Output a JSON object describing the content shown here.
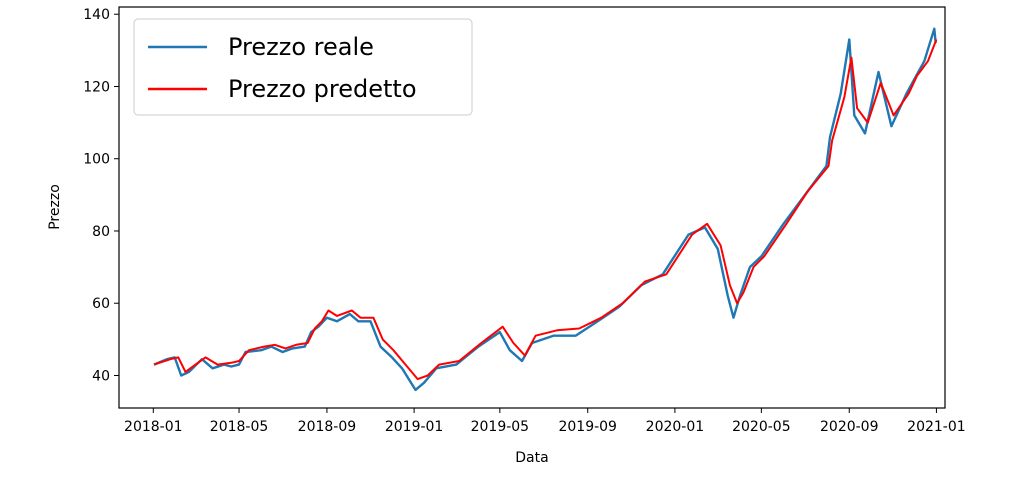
{
  "chart_data": {
    "type": "line",
    "title": "",
    "xlabel": "Data",
    "ylabel": "Prezzo",
    "x_ticks": [
      "2018-01",
      "2018-05",
      "2018-09",
      "2019-01",
      "2019-05",
      "2019-09",
      "2020-01",
      "2020-05",
      "2020-09",
      "2021-01"
    ],
    "y_ticks": [
      40,
      60,
      80,
      100,
      120,
      140
    ],
    "ylim": [
      31,
      142
    ],
    "xlim": [
      "2017-11-14",
      "2021-01-13"
    ],
    "grid": false,
    "legend_position": "top-left",
    "series": [
      {
        "name": "Prezzo reale",
        "color": "#1f77b4",
        "points": [
          [
            "2018-01-02",
            43
          ],
          [
            "2018-01-20",
            44.5
          ],
          [
            "2018-01-31",
            45
          ],
          [
            "2018-02-09",
            40
          ],
          [
            "2018-02-20",
            41
          ],
          [
            "2018-03-10",
            44.5
          ],
          [
            "2018-03-25",
            42
          ],
          [
            "2018-04-10",
            43
          ],
          [
            "2018-04-20",
            42.5
          ],
          [
            "2018-05-01",
            43
          ],
          [
            "2018-05-10",
            46.5
          ],
          [
            "2018-06-01",
            47
          ],
          [
            "2018-06-15",
            48
          ],
          [
            "2018-07-01",
            46.5
          ],
          [
            "2018-07-15",
            47.5
          ],
          [
            "2018-08-01",
            48
          ],
          [
            "2018-08-10",
            52
          ],
          [
            "2018-08-20",
            53.5
          ],
          [
            "2018-09-01",
            56
          ],
          [
            "2018-09-15",
            55
          ],
          [
            "2018-10-03",
            57
          ],
          [
            "2018-10-15",
            55
          ],
          [
            "2018-11-01",
            55
          ],
          [
            "2018-11-15",
            48
          ],
          [
            "2018-12-01",
            45
          ],
          [
            "2018-12-15",
            42
          ],
          [
            "2019-01-03",
            36
          ],
          [
            "2019-01-15",
            38
          ],
          [
            "2019-02-01",
            42
          ],
          [
            "2019-03-01",
            43
          ],
          [
            "2019-04-01",
            48
          ],
          [
            "2019-05-01",
            52
          ],
          [
            "2019-05-15",
            47
          ],
          [
            "2019-06-01",
            44
          ],
          [
            "2019-06-15",
            49
          ],
          [
            "2019-07-15",
            51
          ],
          [
            "2019-08-15",
            51
          ],
          [
            "2019-09-15",
            55
          ],
          [
            "2019-10-15",
            59
          ],
          [
            "2019-11-15",
            65
          ],
          [
            "2019-12-15",
            68
          ],
          [
            "2020-01-20",
            79
          ],
          [
            "2020-02-12",
            81
          ],
          [
            "2020-03-01",
            75
          ],
          [
            "2020-03-15",
            62
          ],
          [
            "2020-03-23",
            56
          ],
          [
            "2020-04-01",
            62
          ],
          [
            "2020-04-15",
            70
          ],
          [
            "2020-05-01",
            73
          ],
          [
            "2020-06-01",
            82
          ],
          [
            "2020-07-01",
            90
          ],
          [
            "2020-07-31",
            98
          ],
          [
            "2020-08-05",
            106
          ],
          [
            "2020-08-20",
            118
          ],
          [
            "2020-09-01",
            133
          ],
          [
            "2020-09-08",
            112
          ],
          [
            "2020-09-23",
            107
          ],
          [
            "2020-10-12",
            124
          ],
          [
            "2020-10-30",
            109
          ],
          [
            "2020-11-20",
            118
          ],
          [
            "2020-12-01",
            122
          ],
          [
            "2020-12-15",
            127
          ],
          [
            "2020-12-29",
            136
          ],
          [
            "2020-12-31",
            132
          ]
        ]
      },
      {
        "name": "Prezzo predetto",
        "color": "#ff0000",
        "points": [
          [
            "2018-01-02",
            43
          ],
          [
            "2018-01-25",
            44.5
          ],
          [
            "2018-02-05",
            45
          ],
          [
            "2018-02-15",
            41
          ],
          [
            "2018-03-01",
            43
          ],
          [
            "2018-03-15",
            45
          ],
          [
            "2018-04-01",
            43
          ],
          [
            "2018-04-20",
            43.5
          ],
          [
            "2018-05-01",
            44
          ],
          [
            "2018-05-15",
            47
          ],
          [
            "2018-06-05",
            48
          ],
          [
            "2018-06-20",
            48.5
          ],
          [
            "2018-07-05",
            47.5
          ],
          [
            "2018-07-20",
            48.5
          ],
          [
            "2018-08-05",
            49
          ],
          [
            "2018-08-15",
            53
          ],
          [
            "2018-08-25",
            55
          ],
          [
            "2018-09-03",
            58
          ],
          [
            "2018-09-15",
            56.5
          ],
          [
            "2018-10-06",
            58
          ],
          [
            "2018-10-18",
            56
          ],
          [
            "2018-11-05",
            56
          ],
          [
            "2018-11-18",
            50
          ],
          [
            "2018-12-03",
            47
          ],
          [
            "2018-12-20",
            43
          ],
          [
            "2019-01-06",
            39
          ],
          [
            "2019-01-20",
            40
          ],
          [
            "2019-02-05",
            43
          ],
          [
            "2019-03-05",
            44
          ],
          [
            "2019-04-05",
            49
          ],
          [
            "2019-05-05",
            53.5
          ],
          [
            "2019-05-20",
            49
          ],
          [
            "2019-06-05",
            45.5
          ],
          [
            "2019-06-20",
            51
          ],
          [
            "2019-07-20",
            52.5
          ],
          [
            "2019-08-20",
            53
          ],
          [
            "2019-09-20",
            56
          ],
          [
            "2019-10-20",
            60
          ],
          [
            "2019-11-20",
            66
          ],
          [
            "2019-12-20",
            68
          ],
          [
            "2020-01-25",
            79
          ],
          [
            "2020-02-15",
            82
          ],
          [
            "2020-03-05",
            76
          ],
          [
            "2020-03-18",
            65
          ],
          [
            "2020-03-28",
            60
          ],
          [
            "2020-04-06",
            63
          ],
          [
            "2020-04-20",
            70
          ],
          [
            "2020-05-05",
            73
          ],
          [
            "2020-06-05",
            82
          ],
          [
            "2020-07-05",
            91
          ],
          [
            "2020-08-03",
            98
          ],
          [
            "2020-08-08",
            105
          ],
          [
            "2020-08-25",
            117
          ],
          [
            "2020-09-04",
            128
          ],
          [
            "2020-09-12",
            114
          ],
          [
            "2020-09-27",
            110
          ],
          [
            "2020-10-15",
            121
          ],
          [
            "2020-11-02",
            112
          ],
          [
            "2020-11-23",
            118
          ],
          [
            "2020-12-05",
            123
          ],
          [
            "2020-12-20",
            127
          ],
          [
            "2021-01-01",
            133
          ]
        ]
      }
    ]
  }
}
